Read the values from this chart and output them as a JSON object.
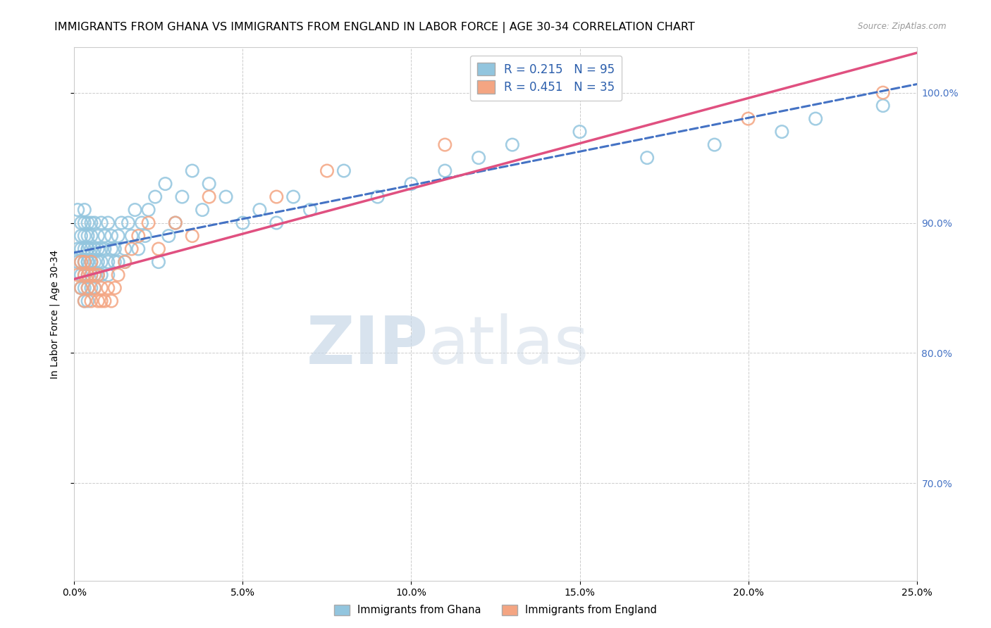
{
  "title": "IMMIGRANTS FROM GHANA VS IMMIGRANTS FROM ENGLAND IN LABOR FORCE | AGE 30-34 CORRELATION CHART",
  "source": "Source: ZipAtlas.com",
  "ylabel": "In Labor Force | Age 30-34",
  "xlim": [
    0.0,
    0.25
  ],
  "ylim": [
    0.625,
    1.035
  ],
  "xtick_labels": [
    "0.0%",
    "5.0%",
    "10.0%",
    "15.0%",
    "20.0%",
    "25.0%"
  ],
  "xtick_values": [
    0.0,
    0.05,
    0.1,
    0.15,
    0.2,
    0.25
  ],
  "ytick_labels": [
    "70.0%",
    "80.0%",
    "90.0%",
    "100.0%"
  ],
  "ytick_values": [
    0.7,
    0.8,
    0.9,
    1.0
  ],
  "ghana_color": "#92c5de",
  "england_color": "#f4a582",
  "ghana_edge": "#6baed6",
  "england_edge": "#f08080",
  "ghana_R": 0.215,
  "ghana_N": 95,
  "england_R": 0.451,
  "england_N": 35,
  "legend_color": "#2c5fac",
  "watermark_zip": "ZIP",
  "watermark_atlas": "atlas",
  "bg_color": "#ffffff",
  "grid_color": "#cccccc",
  "right_label_color": "#4472c4",
  "title_fontsize": 11.5,
  "label_fontsize": 10,
  "tick_fontsize": 10,
  "ghana_line_color": "#4472c4",
  "england_line_color": "#e05080",
  "ghana_x": [
    0.001,
    0.001,
    0.001,
    0.002,
    0.002,
    0.002,
    0.002,
    0.002,
    0.002,
    0.003,
    0.003,
    0.003,
    0.003,
    0.003,
    0.003,
    0.003,
    0.003,
    0.003,
    0.004,
    0.004,
    0.004,
    0.004,
    0.004,
    0.004,
    0.004,
    0.004,
    0.004,
    0.005,
    0.005,
    0.005,
    0.005,
    0.005,
    0.005,
    0.005,
    0.006,
    0.006,
    0.006,
    0.006,
    0.006,
    0.007,
    0.007,
    0.007,
    0.007,
    0.008,
    0.008,
    0.008,
    0.008,
    0.009,
    0.009,
    0.01,
    0.01,
    0.01,
    0.011,
    0.011,
    0.012,
    0.012,
    0.013,
    0.013,
    0.014,
    0.015,
    0.015,
    0.016,
    0.017,
    0.018,
    0.019,
    0.02,
    0.021,
    0.022,
    0.024,
    0.025,
    0.027,
    0.028,
    0.03,
    0.032,
    0.035,
    0.038,
    0.04,
    0.045,
    0.05,
    0.055,
    0.06,
    0.065,
    0.07,
    0.08,
    0.09,
    0.1,
    0.11,
    0.12,
    0.13,
    0.15,
    0.17,
    0.19,
    0.21,
    0.22,
    0.24
  ],
  "ghana_y": [
    0.87,
    0.91,
    0.88,
    0.87,
    0.88,
    0.89,
    0.9,
    0.85,
    0.86,
    0.87,
    0.88,
    0.89,
    0.9,
    0.87,
    0.91,
    0.86,
    0.84,
    0.85,
    0.87,
    0.88,
    0.89,
    0.9,
    0.86,
    0.85,
    0.84,
    0.88,
    0.87,
    0.87,
    0.89,
    0.88,
    0.9,
    0.86,
    0.87,
    0.85,
    0.87,
    0.88,
    0.9,
    0.86,
    0.85,
    0.88,
    0.87,
    0.89,
    0.86,
    0.9,
    0.88,
    0.87,
    0.86,
    0.89,
    0.88,
    0.87,
    0.9,
    0.86,
    0.88,
    0.89,
    0.87,
    0.88,
    0.89,
    0.87,
    0.9,
    0.88,
    0.87,
    0.9,
    0.89,
    0.91,
    0.88,
    0.9,
    0.89,
    0.91,
    0.92,
    0.87,
    0.93,
    0.89,
    0.9,
    0.92,
    0.94,
    0.91,
    0.93,
    0.92,
    0.9,
    0.91,
    0.9,
    0.92,
    0.91,
    0.94,
    0.92,
    0.93,
    0.94,
    0.95,
    0.96,
    0.97,
    0.95,
    0.96,
    0.97,
    0.98,
    0.99
  ],
  "england_x": [
    0.001,
    0.002,
    0.002,
    0.003,
    0.003,
    0.003,
    0.004,
    0.004,
    0.005,
    0.005,
    0.005,
    0.006,
    0.006,
    0.007,
    0.007,
    0.008,
    0.008,
    0.009,
    0.01,
    0.011,
    0.012,
    0.013,
    0.015,
    0.017,
    0.019,
    0.022,
    0.025,
    0.03,
    0.035,
    0.04,
    0.06,
    0.075,
    0.11,
    0.2,
    0.24
  ],
  "england_y": [
    0.86,
    0.85,
    0.87,
    0.84,
    0.86,
    0.87,
    0.85,
    0.86,
    0.84,
    0.86,
    0.87,
    0.85,
    0.86,
    0.84,
    0.86,
    0.84,
    0.85,
    0.84,
    0.85,
    0.84,
    0.85,
    0.86,
    0.87,
    0.88,
    0.89,
    0.9,
    0.88,
    0.9,
    0.89,
    0.92,
    0.92,
    0.94,
    0.96,
    0.98,
    1.0
  ]
}
